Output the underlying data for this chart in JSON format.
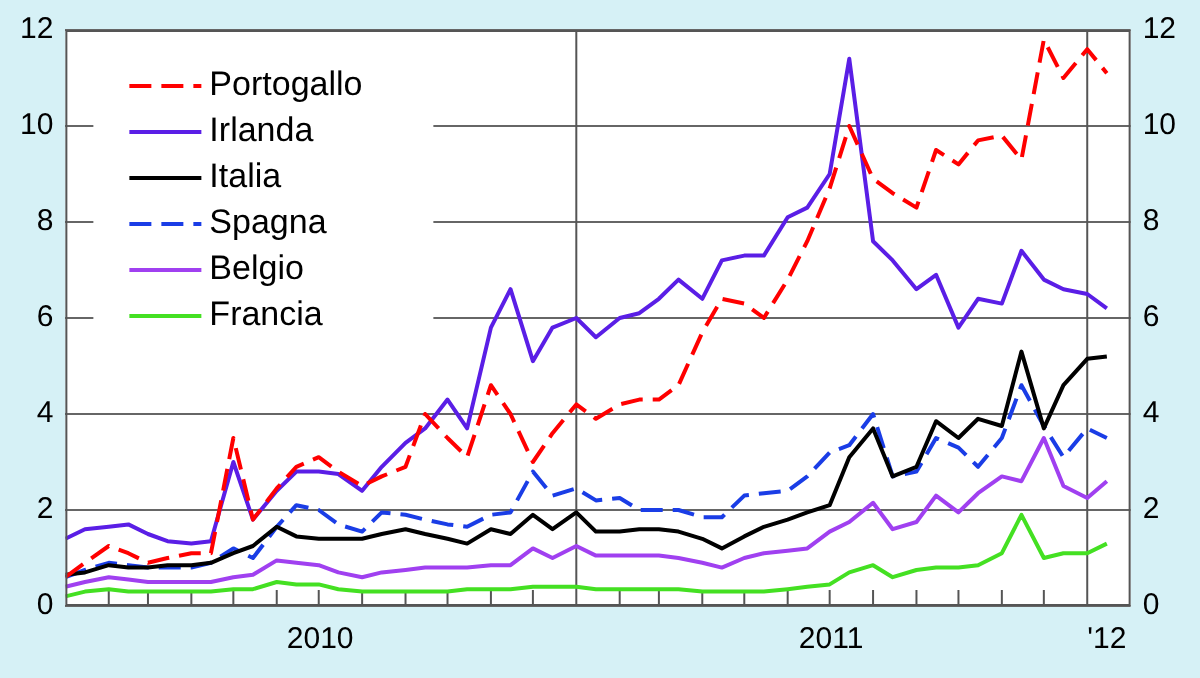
{
  "chart_data": {
    "type": "line",
    "x": [
      "2010-01-01",
      "2010-01-15",
      "2010-02-01",
      "2010-02-15",
      "2010-03-01",
      "2010-03-15",
      "2010-04-01",
      "2010-04-15",
      "2010-05-01",
      "2010-05-15",
      "2010-06-01",
      "2010-06-15",
      "2010-07-01",
      "2010-07-15",
      "2010-08-01",
      "2010-08-15",
      "2010-09-01",
      "2010-09-15",
      "2010-10-01",
      "2010-10-15",
      "2010-11-01",
      "2010-11-15",
      "2010-12-01",
      "2010-12-15",
      "2011-01-01",
      "2011-01-15",
      "2011-02-01",
      "2011-02-15",
      "2011-03-01",
      "2011-03-15",
      "2011-04-01",
      "2011-04-15",
      "2011-05-01",
      "2011-05-15",
      "2011-06-01",
      "2011-06-15",
      "2011-07-01",
      "2011-07-15",
      "2011-08-01",
      "2011-08-15",
      "2011-09-01",
      "2011-09-15",
      "2011-10-01",
      "2011-10-15",
      "2011-11-01",
      "2011-11-15",
      "2011-12-01",
      "2011-12-15",
      "2012-01-01",
      "2012-01-15"
    ],
    "series": [
      {
        "name": "Portogallo",
        "color": "#ff0000",
        "line_style": "dashed",
        "values": [
          0.6,
          0.9,
          1.25,
          1.1,
          0.9,
          1.0,
          1.1,
          1.1,
          3.5,
          1.8,
          2.45,
          2.9,
          3.1,
          2.8,
          2.5,
          2.7,
          2.9,
          4.0,
          3.5,
          3.1,
          4.6,
          4.0,
          3.0,
          3.6,
          4.2,
          3.9,
          4.2,
          4.3,
          4.3,
          4.6,
          5.7,
          6.4,
          6.3,
          6.0,
          6.8,
          7.6,
          8.7,
          10.0,
          8.9,
          8.6,
          8.3,
          9.5,
          9.2,
          9.7,
          9.8,
          9.3,
          11.8,
          11.0,
          11.6,
          11.1
        ]
      },
      {
        "name": "Irlanda",
        "color": "#5a1ee6",
        "line_style": "solid",
        "values": [
          1.4,
          1.6,
          1.65,
          1.7,
          1.5,
          1.35,
          1.3,
          1.35,
          3.0,
          1.8,
          2.4,
          2.8,
          2.8,
          2.75,
          2.4,
          2.9,
          3.4,
          3.7,
          4.3,
          3.7,
          5.8,
          6.6,
          5.1,
          5.8,
          6.0,
          5.6,
          6.0,
          6.1,
          6.4,
          6.8,
          6.4,
          7.2,
          7.3,
          7.3,
          8.1,
          8.3,
          9.0,
          11.4,
          7.6,
          7.2,
          6.6,
          6.9,
          5.8,
          6.4,
          6.3,
          7.4,
          6.8,
          6.6,
          6.5,
          6.2
        ]
      },
      {
        "name": "Italia",
        "color": "#000000",
        "line_style": "solid",
        "values": [
          0.65,
          0.7,
          0.85,
          0.8,
          0.8,
          0.85,
          0.85,
          0.9,
          1.1,
          1.25,
          1.65,
          1.45,
          1.4,
          1.4,
          1.4,
          1.5,
          1.6,
          1.5,
          1.4,
          1.3,
          1.6,
          1.5,
          1.9,
          1.6,
          1.95,
          1.55,
          1.55,
          1.6,
          1.6,
          1.55,
          1.4,
          1.2,
          1.45,
          1.65,
          1.8,
          1.95,
          2.1,
          3.1,
          3.7,
          2.7,
          2.9,
          3.85,
          3.5,
          3.9,
          3.75,
          5.3,
          3.7,
          4.6,
          5.15,
          5.2
        ]
      },
      {
        "name": "Spagna",
        "color": "#1a3de6",
        "line_style": "dashed",
        "values": [
          0.6,
          0.75,
          0.9,
          0.85,
          0.8,
          0.8,
          0.8,
          0.9,
          1.2,
          1.0,
          1.65,
          2.1,
          2.0,
          1.7,
          1.55,
          1.95,
          1.9,
          1.8,
          1.7,
          1.65,
          1.9,
          1.95,
          2.8,
          2.3,
          2.45,
          2.2,
          2.25,
          2.0,
          2.0,
          2.0,
          1.85,
          1.85,
          2.3,
          2.35,
          2.4,
          2.7,
          3.2,
          3.35,
          4.0,
          2.7,
          2.8,
          3.5,
          3.3,
          2.9,
          3.5,
          4.6,
          3.75,
          3.1,
          3.7,
          3.5
        ]
      },
      {
        "name": "Belgio",
        "color": "#a040f0",
        "line_style": "solid",
        "values": [
          0.4,
          0.5,
          0.6,
          0.55,
          0.5,
          0.5,
          0.5,
          0.5,
          0.6,
          0.65,
          0.95,
          0.9,
          0.85,
          0.7,
          0.6,
          0.7,
          0.75,
          0.8,
          0.8,
          0.8,
          0.85,
          0.85,
          1.2,
          1.0,
          1.25,
          1.05,
          1.05,
          1.05,
          1.05,
          1.0,
          0.9,
          0.8,
          1.0,
          1.1,
          1.15,
          1.2,
          1.55,
          1.75,
          2.15,
          1.6,
          1.75,
          2.3,
          1.95,
          2.35,
          2.7,
          2.6,
          3.5,
          2.5,
          2.25,
          2.6
        ]
      },
      {
        "name": "Francia",
        "color": "#44e022",
        "line_style": "solid",
        "values": [
          0.2,
          0.3,
          0.35,
          0.3,
          0.3,
          0.3,
          0.3,
          0.3,
          0.35,
          0.35,
          0.5,
          0.45,
          0.45,
          0.35,
          0.3,
          0.3,
          0.3,
          0.3,
          0.3,
          0.35,
          0.35,
          0.35,
          0.4,
          0.4,
          0.4,
          0.35,
          0.35,
          0.35,
          0.35,
          0.35,
          0.3,
          0.3,
          0.3,
          0.3,
          0.35,
          0.4,
          0.45,
          0.7,
          0.85,
          0.6,
          0.75,
          0.8,
          0.8,
          0.85,
          1.1,
          1.9,
          1.0,
          1.1,
          1.1,
          1.3
        ]
      }
    ],
    "xlim": [
      "2010-01-01",
      "2012-02-01"
    ],
    "xticks": [
      {
        "value": "2010-02-01",
        "label": null
      },
      {
        "value": "2010-03-01",
        "label": null
      },
      {
        "value": "2010-04-01",
        "label": null
      },
      {
        "value": "2010-05-01",
        "label": null
      },
      {
        "value": "2010-06-01",
        "label": null
      },
      {
        "value": "2010-07-01",
        "label": null
      },
      {
        "value": "2010-07-02",
        "label": "2010"
      },
      {
        "value": "2010-08-01",
        "label": null
      },
      {
        "value": "2010-09-01",
        "label": null
      },
      {
        "value": "2010-10-01",
        "label": null
      },
      {
        "value": "2010-11-01",
        "label": null
      },
      {
        "value": "2010-12-01",
        "label": null
      },
      {
        "value": "2011-02-01",
        "label": null
      },
      {
        "value": "2011-03-01",
        "label": null
      },
      {
        "value": "2011-04-01",
        "label": null
      },
      {
        "value": "2011-05-01",
        "label": null
      },
      {
        "value": "2011-06-01",
        "label": null
      },
      {
        "value": "2011-07-01",
        "label": null
      },
      {
        "value": "2011-07-02",
        "label": "2011"
      },
      {
        "value": "2011-08-01",
        "label": null
      },
      {
        "value": "2011-09-01",
        "label": null
      },
      {
        "value": "2011-10-01",
        "label": null
      },
      {
        "value": "2011-11-01",
        "label": null
      },
      {
        "value": "2011-12-01",
        "label": null
      },
      {
        "value": "2012-01-15",
        "label": "'12"
      }
    ],
    "ylim": [
      0,
      12
    ],
    "yticks": [
      0,
      2,
      4,
      6,
      8,
      10,
      12
    ],
    "y2lim": [
      0,
      12
    ],
    "y2ticks": [
      0,
      2,
      4,
      6,
      8,
      10,
      12
    ],
    "ref_lines": [
      {
        "axis": "x",
        "value": "2011-01-01"
      },
      {
        "axis": "x",
        "value": "2012-01-01"
      }
    ],
    "grid": "y",
    "legend": "top left"
  }
}
